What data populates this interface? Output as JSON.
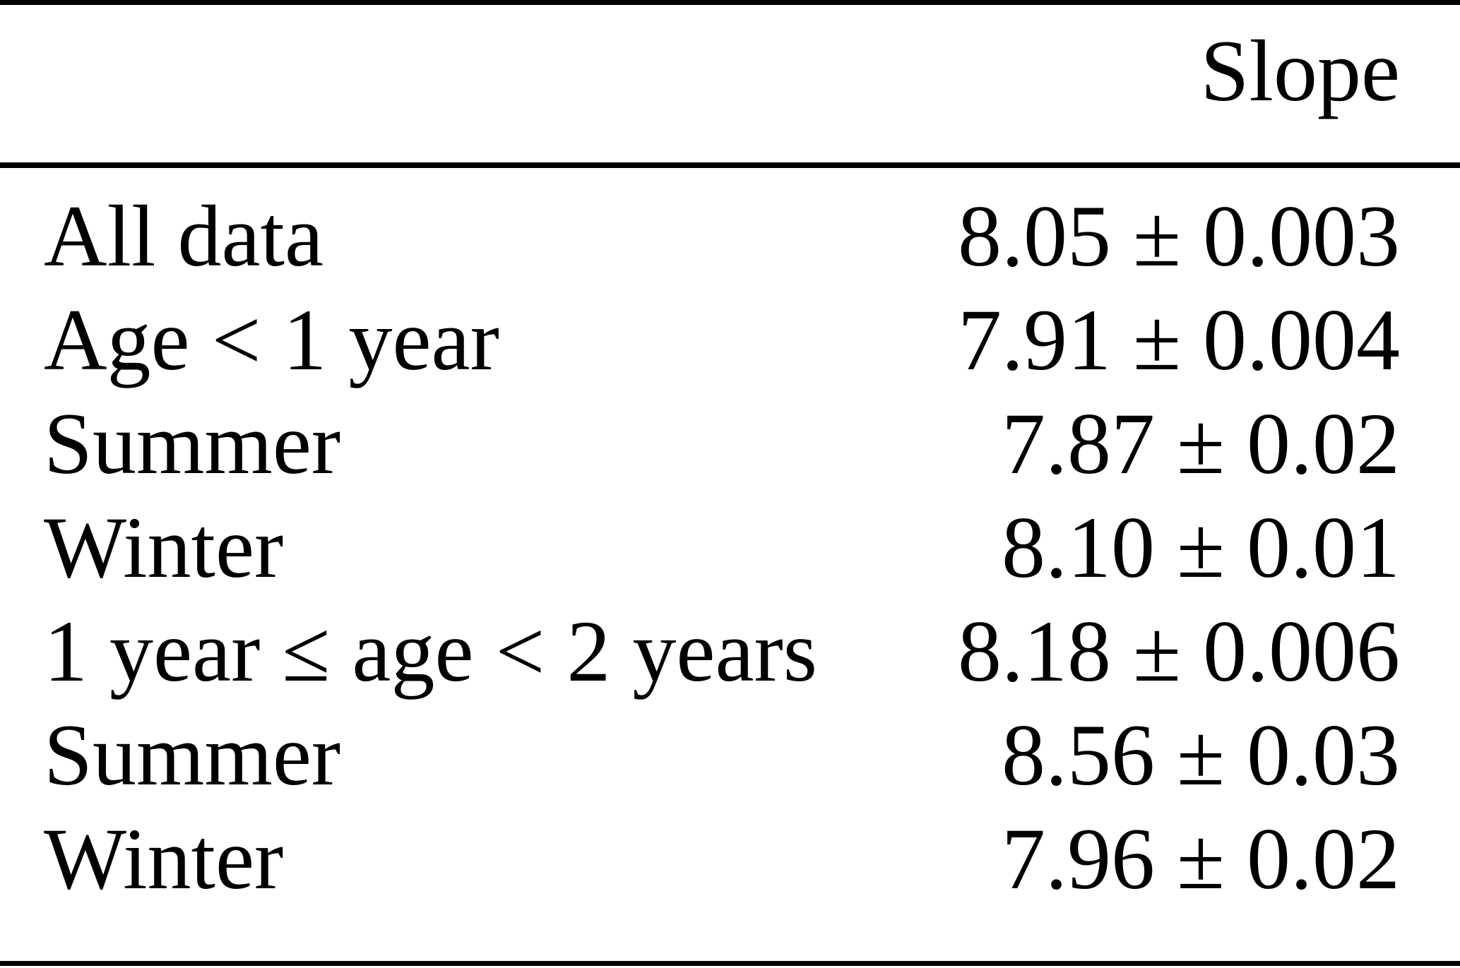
{
  "table": {
    "header": {
      "slope": "Slope"
    },
    "rows": [
      {
        "label": "All data",
        "value": "8.05 ± 0.003"
      },
      {
        "label": "Age < 1 year",
        "value": "7.91 ± 0.004"
      },
      {
        "label": "Summer",
        "value": "7.87 ± 0.02"
      },
      {
        "label": "Winter",
        "value": "8.10 ± 0.01"
      },
      {
        "label": "1 year ≤ age < 2 years",
        "value": "8.18 ± 0.006"
      },
      {
        "label": "Summer",
        "value": "8.56 ± 0.03"
      },
      {
        "label": "Winter",
        "value": "7.96 ± 0.02"
      }
    ]
  },
  "colors": {
    "background": "#ffffff",
    "text": "#000000",
    "rule": "#000000"
  }
}
